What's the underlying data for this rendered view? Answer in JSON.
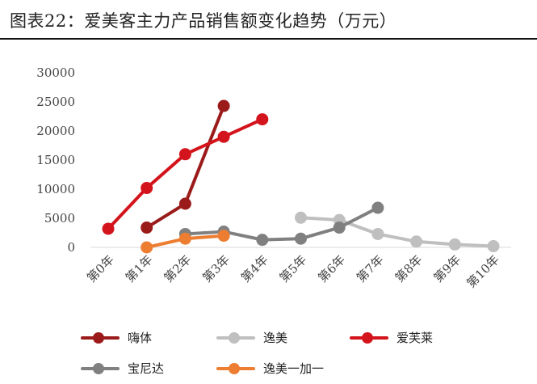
{
  "title": "图表22：爱美客主力产品销售额变化趋势（万元）",
  "chart_data": {
    "type": "line",
    "title": "图表22：爱美客主力产品销售额变化趋势（万元）",
    "categories": [
      "第0年",
      "第1年",
      "第2年",
      "第3年",
      "第4年",
      "第5年",
      "第6年",
      "第7年",
      "第8年",
      "第9年",
      "第10年"
    ],
    "ylim": [
      0,
      30000
    ],
    "yticks": [
      0,
      5000,
      10000,
      15000,
      20000,
      25000,
      30000
    ],
    "grid": false,
    "legend_position": "bottom",
    "series": [
      {
        "name": "嗨体",
        "color": "#9B1B1B",
        "values": [
          null,
          3400,
          7500,
          24300,
          null,
          null,
          null,
          null,
          null,
          null,
          null
        ]
      },
      {
        "name": "逸美",
        "color": "#BFBFBF",
        "values": [
          null,
          null,
          null,
          null,
          null,
          5100,
          4700,
          2300,
          1000,
          500,
          200
        ]
      },
      {
        "name": "爱芙莱",
        "color": "#D4141C",
        "values": [
          3200,
          10200,
          16000,
          19000,
          22000,
          null,
          null,
          null,
          null,
          null,
          null
        ]
      },
      {
        "name": "宝尼达",
        "color": "#808080",
        "values": [
          null,
          null,
          2300,
          2700,
          1300,
          1500,
          3400,
          6800,
          null,
          null,
          null
        ]
      },
      {
        "name": "逸美一加一",
        "color": "#ED7D31",
        "values": [
          null,
          0,
          1500,
          2000,
          null,
          null,
          null,
          null,
          null,
          null,
          null
        ]
      }
    ]
  }
}
